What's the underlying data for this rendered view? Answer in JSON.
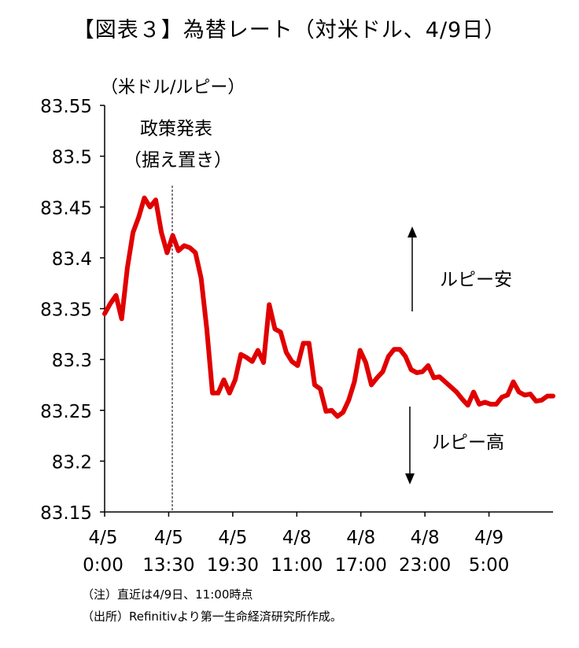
{
  "title": "【図表３】為替レート（対米ドル、4/9日）",
  "chart_data": {
    "type": "line",
    "title": "【図表３】為替レート（対米ドル、4/9日）",
    "ylabel": "（米ドル/ルピー）",
    "xlabel": "",
    "ylim": [
      83.15,
      83.55
    ],
    "yticks": [
      "83.55",
      "83.5",
      "83.45",
      "83.4",
      "83.35",
      "83.3",
      "83.25",
      "83.2",
      "83.15"
    ],
    "ytick_values": [
      83.55,
      83.5,
      83.45,
      83.4,
      83.35,
      83.3,
      83.25,
      83.2,
      83.15
    ],
    "xticks": [
      {
        "date": "4/5",
        "time": "0:00"
      },
      {
        "date": "4/5",
        "time": "13:30"
      },
      {
        "date": "4/5",
        "time": "19:30"
      },
      {
        "date": "4/8",
        "time": "11:00"
      },
      {
        "date": "4/8",
        "time": "17:00"
      },
      {
        "date": "4/8",
        "time": "23:00"
      },
      {
        "date": "4/9",
        "time": "5:00"
      }
    ],
    "grid": false,
    "line_color": "#e00000",
    "series": [
      {
        "values": [
          83.345,
          83.355,
          83.363,
          83.34,
          83.39,
          83.425,
          83.44,
          83.459,
          83.45,
          83.457,
          83.425,
          83.405,
          83.422,
          83.407,
          83.412,
          83.41,
          83.405,
          83.38,
          83.33,
          83.267,
          83.267,
          83.28,
          83.267,
          83.28,
          83.305,
          83.302,
          83.298,
          83.309,
          83.297,
          83.354,
          83.33,
          83.327,
          83.307,
          83.298,
          83.294,
          83.316,
          83.316,
          83.275,
          83.271,
          83.249,
          83.25,
          83.244,
          83.248,
          83.26,
          83.278,
          83.309,
          83.297,
          83.275,
          83.282,
          83.288,
          83.303,
          83.31,
          83.31,
          83.303,
          83.29,
          83.287,
          83.288,
          83.294,
          83.282,
          83.283,
          83.278,
          83.273,
          83.268,
          83.261,
          83.255,
          83.268,
          83.256,
          83.258,
          83.256,
          83.256,
          83.263,
          83.265,
          83.278,
          83.268,
          83.265,
          83.266,
          83.259,
          83.26,
          83.264,
          83.264
        ]
      }
    ],
    "annotations": {
      "policy_line1": "政策発表",
      "policy_line2": "（据え置き）",
      "policy_x_index": 1,
      "up_label": "ルピー安",
      "down_label": "ルピー高"
    }
  },
  "notes": [
    "（注）直近は4/9日、11:00時点",
    "（出所）Refinitivより第一生命経済研究所作成。"
  ]
}
